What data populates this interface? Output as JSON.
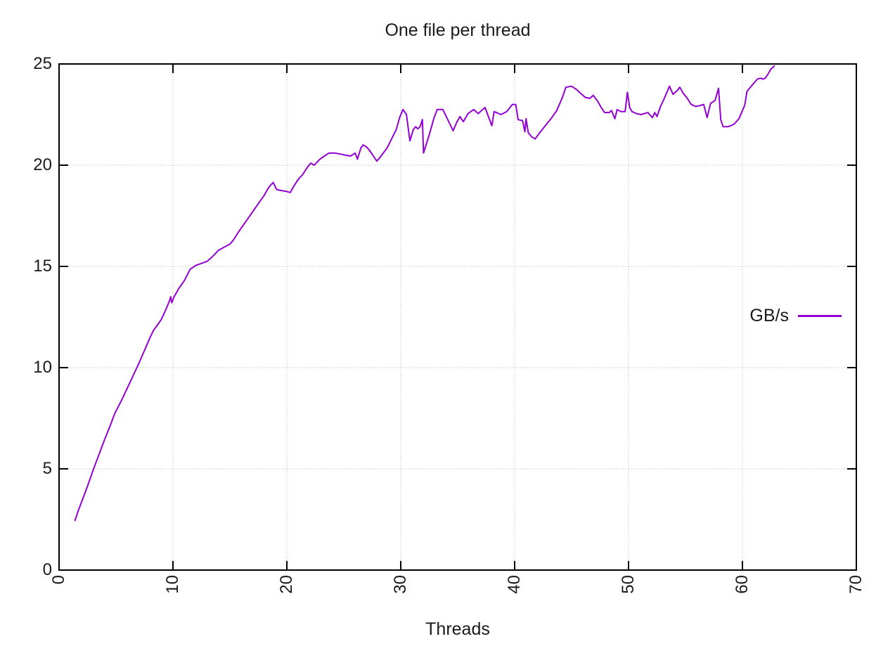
{
  "chart_data": {
    "type": "line",
    "title": "One file per thread",
    "xlabel": "Threads",
    "ylabel": "",
    "xlim": [
      0,
      70
    ],
    "ylim": [
      0,
      25
    ],
    "xticks": [
      0,
      10,
      20,
      30,
      40,
      50,
      60,
      70
    ],
    "yticks": [
      0,
      5,
      10,
      15,
      20,
      25
    ],
    "grid": true,
    "x_tick_rotation": -90,
    "legend": {
      "label": "GB/s",
      "position": "right-middle"
    },
    "colors": {
      "line": "#9400d3",
      "text": "#1a1a1a",
      "grid": "#ababab",
      "border": "#000000",
      "background": "#ffffff"
    },
    "series": [
      {
        "name": "GB/s",
        "color": "#9400d3",
        "points": [
          [
            1.4,
            2.45
          ],
          [
            1.7,
            2.95
          ],
          [
            2,
            3.4
          ],
          [
            2.5,
            4.15
          ],
          [
            3,
            4.95
          ],
          [
            3.5,
            5.7
          ],
          [
            4,
            6.45
          ],
          [
            4.5,
            7.15
          ],
          [
            4.9,
            7.75
          ],
          [
            5.5,
            8.4
          ],
          [
            6,
            9.0
          ],
          [
            6.5,
            9.6
          ],
          [
            7,
            10.2
          ],
          [
            7.5,
            10.85
          ],
          [
            8,
            11.5
          ],
          [
            8.3,
            11.85
          ],
          [
            8.7,
            12.15
          ],
          [
            9,
            12.4
          ],
          [
            9.4,
            12.9
          ],
          [
            9.7,
            13.3
          ],
          [
            9.8,
            13.5
          ],
          [
            9.9,
            13.2
          ],
          [
            10.1,
            13.5
          ],
          [
            10.5,
            13.9
          ],
          [
            11,
            14.3
          ],
          [
            11.5,
            14.85
          ],
          [
            12,
            15.05
          ],
          [
            12.5,
            15.15
          ],
          [
            13,
            15.25
          ],
          [
            13.5,
            15.5
          ],
          [
            14,
            15.8
          ],
          [
            14.5,
            15.95
          ],
          [
            15,
            16.1
          ],
          [
            15.3,
            16.3
          ],
          [
            15.7,
            16.65
          ],
          [
            16,
            16.9
          ],
          [
            16.5,
            17.3
          ],
          [
            17,
            17.7
          ],
          [
            17.5,
            18.1
          ],
          [
            18,
            18.5
          ],
          [
            18.4,
            18.9
          ],
          [
            18.8,
            19.15
          ],
          [
            19.1,
            18.8
          ],
          [
            19.5,
            18.75
          ],
          [
            20,
            18.7
          ],
          [
            20.3,
            18.65
          ],
          [
            20.6,
            18.95
          ],
          [
            21,
            19.3
          ],
          [
            21.4,
            19.55
          ],
          [
            21.8,
            19.9
          ],
          [
            22.1,
            20.1
          ],
          [
            22.4,
            20.0
          ],
          [
            22.9,
            20.3
          ],
          [
            23.3,
            20.45
          ],
          [
            23.7,
            20.6
          ],
          [
            24.2,
            20.6
          ],
          [
            24.7,
            20.55
          ],
          [
            25.1,
            20.5
          ],
          [
            25.6,
            20.45
          ],
          [
            26,
            20.6
          ],
          [
            26.2,
            20.3
          ],
          [
            26.5,
            20.85
          ],
          [
            26.7,
            21.0
          ],
          [
            27,
            20.9
          ],
          [
            27.3,
            20.7
          ],
          [
            27.6,
            20.45
          ],
          [
            27.9,
            20.2
          ],
          [
            28.2,
            20.4
          ],
          [
            28.8,
            20.85
          ],
          [
            29.2,
            21.3
          ],
          [
            29.6,
            21.75
          ],
          [
            29.9,
            22.35
          ],
          [
            30.2,
            22.75
          ],
          [
            30.5,
            22.5
          ],
          [
            30.8,
            21.2
          ],
          [
            31.1,
            21.75
          ],
          [
            31.3,
            21.9
          ],
          [
            31.5,
            21.8
          ],
          [
            31.7,
            21.9
          ],
          [
            31.9,
            22.25
          ],
          [
            32,
            20.6
          ],
          [
            32.5,
            21.5
          ],
          [
            32.9,
            22.3
          ],
          [
            33.2,
            22.75
          ],
          [
            33.7,
            22.75
          ],
          [
            34,
            22.4
          ],
          [
            34.3,
            22.05
          ],
          [
            34.6,
            21.7
          ],
          [
            34.9,
            22.1
          ],
          [
            35.2,
            22.4
          ],
          [
            35.5,
            22.15
          ],
          [
            35.9,
            22.55
          ],
          [
            36.4,
            22.75
          ],
          [
            36.8,
            22.55
          ],
          [
            37.1,
            22.7
          ],
          [
            37.4,
            22.85
          ],
          [
            37.7,
            22.4
          ],
          [
            38,
            21.95
          ],
          [
            38.2,
            22.65
          ],
          [
            38.8,
            22.5
          ],
          [
            39.3,
            22.65
          ],
          [
            39.8,
            23.0
          ],
          [
            40.1,
            23.0
          ],
          [
            40.3,
            22.25
          ],
          [
            40.7,
            22.2
          ],
          [
            40.9,
            21.65
          ],
          [
            41,
            22.3
          ],
          [
            41.2,
            21.6
          ],
          [
            41.5,
            21.4
          ],
          [
            41.8,
            21.3
          ],
          [
            42.2,
            21.6
          ],
          [
            42.7,
            21.95
          ],
          [
            43.2,
            22.3
          ],
          [
            43.7,
            22.7
          ],
          [
            44.2,
            23.35
          ],
          [
            44.5,
            23.85
          ],
          [
            45,
            23.9
          ],
          [
            45.4,
            23.75
          ],
          [
            45.9,
            23.5
          ],
          [
            46.2,
            23.35
          ],
          [
            46.6,
            23.3
          ],
          [
            46.9,
            23.45
          ],
          [
            47.3,
            23.15
          ],
          [
            47.6,
            22.85
          ],
          [
            47.9,
            22.6
          ],
          [
            48.3,
            22.6
          ],
          [
            48.5,
            22.7
          ],
          [
            48.8,
            22.3
          ],
          [
            49,
            22.75
          ],
          [
            49.3,
            22.65
          ],
          [
            49.7,
            22.65
          ],
          [
            49.9,
            23.6
          ],
          [
            50.1,
            22.85
          ],
          [
            50.3,
            22.65
          ],
          [
            50.7,
            22.55
          ],
          [
            51.1,
            22.5
          ],
          [
            51.7,
            22.6
          ],
          [
            52.1,
            22.35
          ],
          [
            52.3,
            22.6
          ],
          [
            52.5,
            22.4
          ],
          [
            52.8,
            22.9
          ],
          [
            53.1,
            23.25
          ],
          [
            53.6,
            23.9
          ],
          [
            53.9,
            23.5
          ],
          [
            54.3,
            23.7
          ],
          [
            54.5,
            23.85
          ],
          [
            54.8,
            23.55
          ],
          [
            55.1,
            23.35
          ],
          [
            55.5,
            23.0
          ],
          [
            55.9,
            22.9
          ],
          [
            56.3,
            22.95
          ],
          [
            56.6,
            23.0
          ],
          [
            56.9,
            22.35
          ],
          [
            57.2,
            23.05
          ],
          [
            57.6,
            23.2
          ],
          [
            57.9,
            23.8
          ],
          [
            58.1,
            22.25
          ],
          [
            58.3,
            21.9
          ],
          [
            58.7,
            21.9
          ],
          [
            59,
            21.95
          ],
          [
            59.3,
            22.05
          ],
          [
            59.7,
            22.3
          ],
          [
            60,
            22.7
          ],
          [
            60.2,
            22.95
          ],
          [
            60.4,
            23.65
          ],
          [
            60.7,
            23.85
          ],
          [
            61,
            24.05
          ],
          [
            61.3,
            24.25
          ],
          [
            61.6,
            24.3
          ],
          [
            61.8,
            24.25
          ],
          [
            62,
            24.3
          ],
          [
            62.2,
            24.45
          ],
          [
            62.5,
            24.75
          ],
          [
            62.8,
            24.9
          ]
        ]
      }
    ]
  }
}
